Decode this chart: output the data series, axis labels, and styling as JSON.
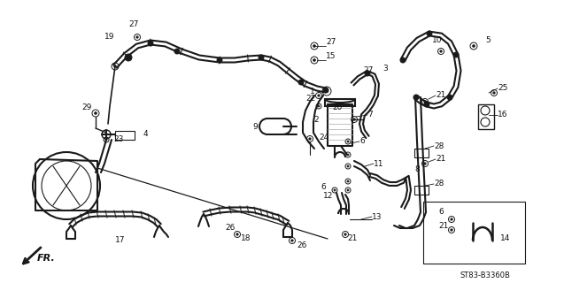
{
  "bg_color": "#ffffff",
  "line_color": "#1a1a1a",
  "text_color": "#111111",
  "diagram_code": "ST83-B3360B",
  "fr_label": "FR.",
  "figsize": [
    6.37,
    3.2
  ],
  "dpi": 100
}
